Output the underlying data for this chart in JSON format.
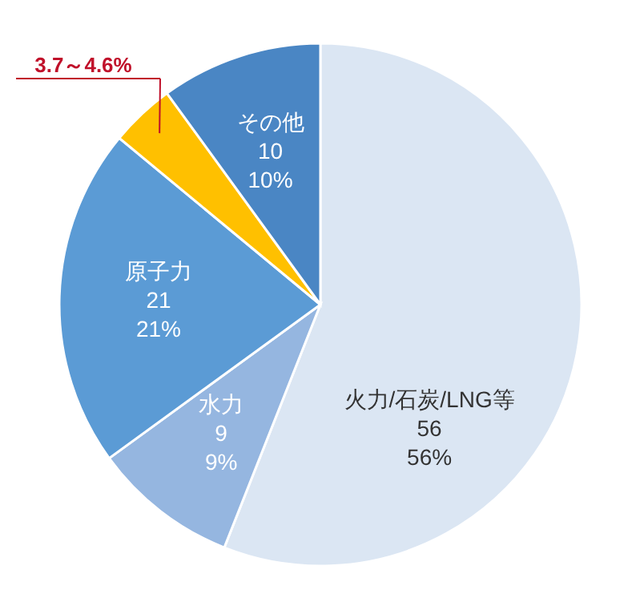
{
  "chart_data": {
    "type": "pie",
    "categories": [
      "火力/石炭/LNG等",
      "水力",
      "原子力",
      null,
      "その他"
    ],
    "values": [
      56,
      9,
      21,
      4,
      10
    ],
    "colors": [
      "#dbe6f3",
      "#95b6e0",
      "#5b9bd5",
      "#ffc000",
      "#4a86c4"
    ],
    "value_labels": [
      "56\n56%",
      "9\n9%",
      "21\n21%",
      null,
      "10\n10%"
    ],
    "annotations": [
      "3.7～4.6%"
    ]
  }
}
